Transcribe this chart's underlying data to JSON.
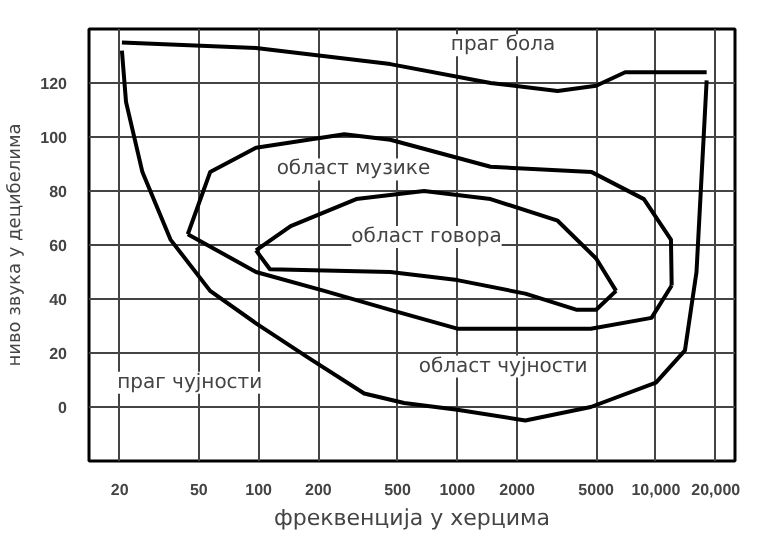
{
  "chart_data": {
    "type": "line",
    "xlabel": "фреквенција у херцима",
    "ylabel": "ниво звука у децибелима",
    "log": "x",
    "xlim": [
      14,
      25000
    ],
    "ylim": [
      -20,
      140
    ],
    "xticks": [
      20,
      50,
      100,
      200,
      500,
      1000,
      2000,
      5000,
      {
        "value": 10000,
        "label": "10,000"
      },
      {
        "value": 20000,
        "label": "20,000"
      }
    ],
    "yticks": [
      0,
      20,
      40,
      60,
      80,
      100,
      120
    ],
    "grid": true,
    "marker": "none",
    "line_style": "solid",
    "series": [
      {
        "color": "#000000",
        "x": [
          20.5,
          97,
          460,
          1470,
          3200,
          5000,
          7000,
          18000
        ],
        "values": [
          135,
          133,
          127,
          120,
          117,
          119,
          124,
          124
        ]
      },
      {
        "color": "#000000",
        "x": [
          20.5,
          21.5,
          26,
          36,
          57,
          97,
          180,
          340,
          540,
          1000,
          2200,
          4700,
          10000,
          14000,
          15000,
          16000,
          18000
        ],
        "values": [
          132,
          113,
          87,
          62,
          43,
          31,
          18,
          5,
          1.5,
          -1,
          -5,
          0,
          9,
          21,
          36,
          50,
          121
        ]
      },
      {
        "color": "#000000",
        "x": [
          44,
          57,
          97,
          270,
          460,
          1470,
          4750,
          8700,
          11900,
          12000
        ],
        "values": [
          64,
          87,
          96,
          101,
          99,
          89,
          87,
          77,
          62,
          45
        ]
      },
      {
        "color": "#000000",
        "x": [
          44,
          97,
          214,
          460,
          1000,
          4700,
          9500,
          12000
        ],
        "values": [
          64,
          50,
          43,
          36,
          29,
          29,
          33,
          45
        ]
      },
      {
        "color": "#000000",
        "x": [
          97,
          145,
          310,
          680,
          1470,
          3200,
          5000,
          6300
        ],
        "values": [
          58,
          67,
          77,
          80,
          77,
          69,
          55,
          43
        ]
      },
      {
        "color": "#000000",
        "x": [
          97,
          114,
          460,
          1000,
          2200,
          4000,
          5000,
          6300
        ],
        "values": [
          58,
          51,
          50,
          47,
          42,
          36,
          36,
          43
        ]
      }
    ],
    "annotations": [
      "праг бола",
      "област музике",
      "област говора",
      "праг чујности",
      "област чујности"
    ]
  }
}
